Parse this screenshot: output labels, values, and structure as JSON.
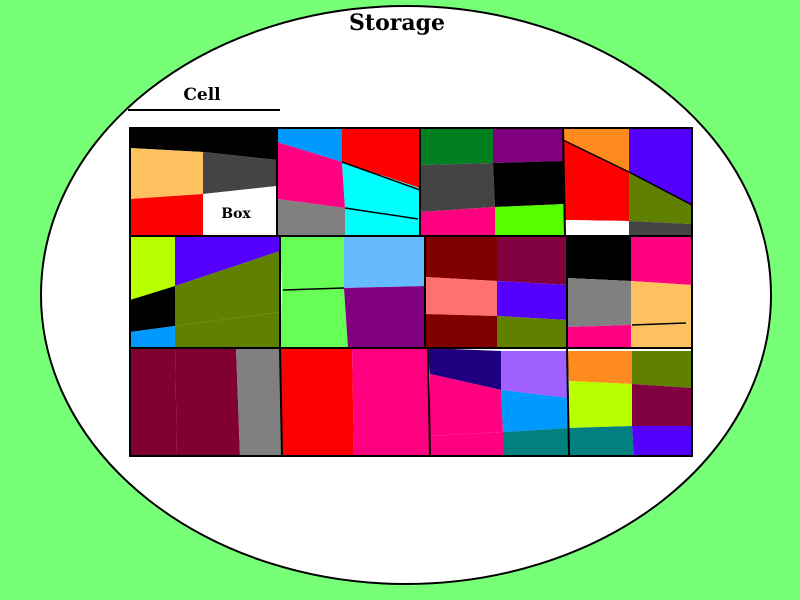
{
  "labels": {
    "storage": "Storage",
    "cell": "Cell",
    "box": "Box"
  },
  "colors": {
    "background": "#77ff77",
    "ellipse_fill": "#ffffff",
    "stroke": "#000000"
  },
  "grid": {
    "block_count": 3,
    "cells_per_block": 5,
    "subcell_colors": [
      "#000000",
      "#ffc060",
      "#ff0000",
      "#000000",
      "#444444",
      "#ffffff",
      "#0099ff",
      "#ff0080",
      "#808080",
      "#ff0000",
      "#00ffff",
      "#00ffff",
      "#008020",
      "#444444",
      "#ff0080",
      "#800080",
      "#000000",
      "#55ff00",
      "#ff8a1e",
      "#ff0000",
      "#ffffff",
      "#5500ff",
      "#608000",
      "#444444",
      "#b8ff00",
      "#000000",
      "#0099ff",
      "#5500ff",
      "#608000",
      "#608000",
      "#66ff55",
      "#66ff55",
      "#66bbff",
      "#800080",
      "#800000",
      "#ff7070",
      "#800000",
      "#800040",
      "#5500ff",
      "#608000",
      "#000000",
      "#808080",
      "#ff0080",
      "#ff0080",
      "#ffc060",
      "#ffc060",
      "#800030",
      "#800030",
      "#808080",
      "#ff0000",
      "#ff0080",
      "#200080",
      "#ff0080",
      "#ff0080",
      "#a060ff",
      "#0099ff",
      "#008080",
      "#ff8a1e",
      "#b8ff00",
      "#008080",
      "#608000",
      "#800040",
      "#5500ff"
    ]
  }
}
